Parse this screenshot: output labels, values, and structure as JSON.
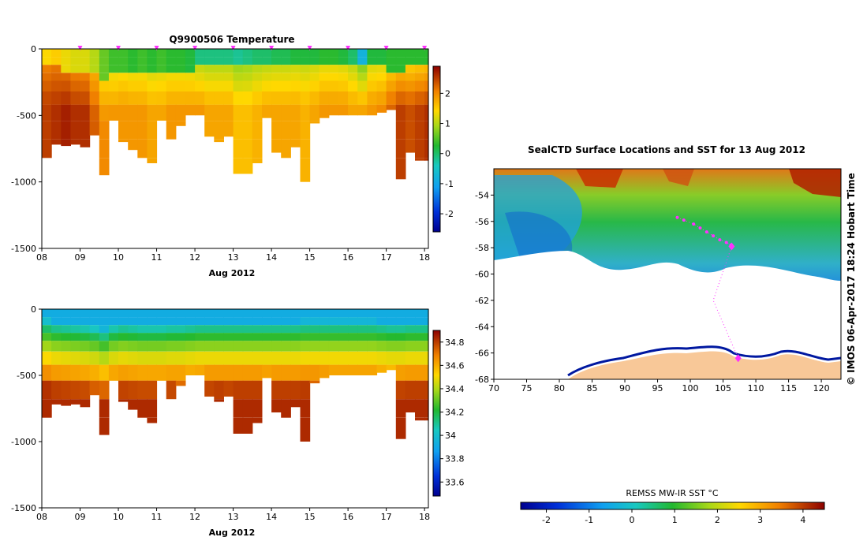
{
  "chart_data": [
    {
      "type": "heatmap",
      "title": "Q9900506  Temperature",
      "xlabel": "Aug 2012",
      "ylabel": "",
      "x_ticks": [
        "08",
        "09",
        "10",
        "11",
        "12",
        "13",
        "14",
        "15",
        "16",
        "17",
        "18"
      ],
      "x_range": [
        8,
        18.1
      ],
      "y_ticks": [
        "0",
        "-500",
        "-1000",
        "-1500"
      ],
      "y_range": [
        -1500,
        0
      ],
      "colorbar": {
        "ticks": [
          "2",
          "1",
          "0",
          "-1",
          "-2"
        ],
        "range": [
          -2.6,
          2.9
        ]
      },
      "profile_markers_day": [
        9,
        10,
        11,
        12,
        13,
        14,
        15,
        16,
        17,
        18
      ],
      "profiles": [
        {
          "t": 8.0,
          "mixed_depth": 120,
          "max_depth": 820,
          "surface_value": 1.4,
          "deep_value": 2.5
        },
        {
          "t": 8.25,
          "mixed_depth": 150,
          "max_depth": 720,
          "surface_value": 1.5,
          "deep_value": 2.6
        },
        {
          "t": 8.5,
          "mixed_depth": 160,
          "max_depth": 730,
          "surface_value": 1.3,
          "deep_value": 2.7
        },
        {
          "t": 8.75,
          "mixed_depth": 170,
          "max_depth": 720,
          "surface_value": 1.2,
          "deep_value": 2.6
        },
        {
          "t": 9.0,
          "mixed_depth": 180,
          "max_depth": 740,
          "surface_value": 1.2,
          "deep_value": 2.6
        },
        {
          "t": 9.25,
          "mixed_depth": 200,
          "max_depth": 650,
          "surface_value": 1.0,
          "deep_value": 2.3
        },
        {
          "t": 9.5,
          "mixed_depth": 240,
          "max_depth": 950,
          "surface_value": 0.6,
          "deep_value": 2.0
        },
        {
          "t": 9.75,
          "mixed_depth": 180,
          "max_depth": 540,
          "surface_value": 0.4,
          "deep_value": 1.9
        },
        {
          "t": 10.0,
          "mixed_depth": 160,
          "max_depth": 700,
          "surface_value": 0.4,
          "deep_value": 1.9
        },
        {
          "t": 10.25,
          "mixed_depth": 170,
          "max_depth": 760,
          "surface_value": 0.3,
          "deep_value": 1.9
        },
        {
          "t": 10.5,
          "mixed_depth": 180,
          "max_depth": 820,
          "surface_value": 0.4,
          "deep_value": 1.9
        },
        {
          "t": 10.75,
          "mixed_depth": 180,
          "max_depth": 860,
          "surface_value": 0.3,
          "deep_value": 1.8
        },
        {
          "t": 11.0,
          "mixed_depth": 180,
          "max_depth": 540,
          "surface_value": 0.4,
          "deep_value": 1.8
        },
        {
          "t": 11.25,
          "mixed_depth": 170,
          "max_depth": 680,
          "surface_value": 0.3,
          "deep_value": 1.9
        },
        {
          "t": 11.5,
          "mixed_depth": 170,
          "max_depth": 580,
          "surface_value": 0.3,
          "deep_value": 1.9
        },
        {
          "t": 11.75,
          "mixed_depth": 160,
          "max_depth": 500,
          "surface_value": 0.2,
          "deep_value": 1.9
        },
        {
          "t": 12.0,
          "mixed_depth": 150,
          "max_depth": 500,
          "surface_value": -0.1,
          "deep_value": 1.9
        },
        {
          "t": 12.25,
          "mixed_depth": 150,
          "max_depth": 660,
          "surface_value": -0.1,
          "deep_value": 1.8
        },
        {
          "t": 12.5,
          "mixed_depth": 150,
          "max_depth": 700,
          "surface_value": -0.1,
          "deep_value": 1.8
        },
        {
          "t": 12.75,
          "mixed_depth": 150,
          "max_depth": 660,
          "surface_value": -0.1,
          "deep_value": 1.8
        },
        {
          "t": 13.0,
          "mixed_depth": 150,
          "max_depth": 940,
          "surface_value": -0.2,
          "deep_value": 1.6
        },
        {
          "t": 13.25,
          "mixed_depth": 150,
          "max_depth": 940,
          "surface_value": -0.1,
          "deep_value": 1.6
        },
        {
          "t": 13.5,
          "mixed_depth": 150,
          "max_depth": 860,
          "surface_value": 0.0,
          "deep_value": 1.7
        },
        {
          "t": 13.75,
          "mixed_depth": 150,
          "max_depth": 520,
          "surface_value": 0.0,
          "deep_value": 1.8
        },
        {
          "t": 14.0,
          "mixed_depth": 150,
          "max_depth": 780,
          "surface_value": 0.1,
          "deep_value": 1.8
        },
        {
          "t": 14.25,
          "mixed_depth": 150,
          "max_depth": 820,
          "surface_value": 0.1,
          "deep_value": 1.8
        },
        {
          "t": 14.5,
          "mixed_depth": 150,
          "max_depth": 740,
          "surface_value": 0.2,
          "deep_value": 1.8
        },
        {
          "t": 14.75,
          "mixed_depth": 140,
          "max_depth": 1000,
          "surface_value": 0.2,
          "deep_value": 1.7
        },
        {
          "t": 15.0,
          "mixed_depth": 140,
          "max_depth": 560,
          "surface_value": 0.2,
          "deep_value": 1.8
        },
        {
          "t": 15.25,
          "mixed_depth": 140,
          "max_depth": 520,
          "surface_value": 0.3,
          "deep_value": 1.9
        },
        {
          "t": 15.5,
          "mixed_depth": 140,
          "max_depth": 500,
          "surface_value": 0.3,
          "deep_value": 1.9
        },
        {
          "t": 15.75,
          "mixed_depth": 140,
          "max_depth": 500,
          "surface_value": 0.2,
          "deep_value": 1.9
        },
        {
          "t": 16.0,
          "mixed_depth": 140,
          "max_depth": 500,
          "surface_value": 0.0,
          "deep_value": 1.8
        },
        {
          "t": 16.25,
          "mixed_depth": 140,
          "max_depth": 500,
          "surface_value": -0.8,
          "deep_value": 1.8
        },
        {
          "t": 16.5,
          "mixed_depth": 140,
          "max_depth": 500,
          "surface_value": 0.2,
          "deep_value": 1.9
        },
        {
          "t": 16.75,
          "mixed_depth": 150,
          "max_depth": 480,
          "surface_value": 0.2,
          "deep_value": 2.0
        },
        {
          "t": 17.0,
          "mixed_depth": 160,
          "max_depth": 460,
          "surface_value": 0.3,
          "deep_value": 2.3
        },
        {
          "t": 17.25,
          "mixed_depth": 160,
          "max_depth": 980,
          "surface_value": 0.3,
          "deep_value": 2.5
        },
        {
          "t": 17.5,
          "mixed_depth": 150,
          "max_depth": 780,
          "surface_value": 0.3,
          "deep_value": 2.4
        },
        {
          "t": 17.75,
          "mixed_depth": 150,
          "max_depth": 840,
          "surface_value": 0.3,
          "deep_value": 2.5
        },
        {
          "t": 18.0,
          "mixed_depth": 150,
          "max_depth": 840,
          "surface_value": 0.3,
          "deep_value": 2.6
        }
      ]
    },
    {
      "type": "heatmap",
      "title": "",
      "xlabel": "Aug 2012",
      "ylabel": "",
      "x_ticks": [
        "08",
        "09",
        "10",
        "11",
        "12",
        "13",
        "14",
        "15",
        "16",
        "17",
        "18"
      ],
      "x_range": [
        8,
        18.1
      ],
      "y_ticks": [
        "0",
        "-500",
        "-1000",
        "-1500"
      ],
      "y_range": [
        -1500,
        0
      ],
      "colorbar": {
        "ticks": [
          "34.8",
          "34.6",
          "34.4",
          "34.2",
          "34",
          "33.8",
          "33.6"
        ],
        "range": [
          33.48,
          34.9
        ]
      },
      "surface_value": 33.92,
      "deep_value": 34.83
    },
    {
      "type": "heatmap",
      "title": "SealCTD Surface Locations and SST for 13 Aug 2012",
      "xlabel": "",
      "ylabel": "",
      "x_ticks": [
        "70",
        "75",
        "80",
        "85",
        "90",
        "95",
        "100",
        "105",
        "110",
        "115",
        "120"
      ],
      "x_range": [
        70,
        123
      ],
      "y_ticks": [
        "-54",
        "-56",
        "-58",
        "-60",
        "-62",
        "-64",
        "-66",
        "-68"
      ],
      "y_range": [
        -68,
        -52
      ],
      "colorbar": {
        "label": "REMSS MW-IR SST °C",
        "ticks": [
          "-2",
          "-1",
          "0",
          "1",
          "2",
          "3",
          "4"
        ],
        "range": [
          -2.6,
          4.5
        ]
      },
      "track_lon": [
        98,
        99,
        100.5,
        101.5,
        102.5,
        103.5,
        104.5,
        105.5,
        106.2
      ],
      "track_lat": [
        -55.7,
        -55.9,
        -56.2,
        -56.5,
        -56.8,
        -57.1,
        -57.4,
        -57.6,
        -57.8
      ],
      "recent_lon": 106.3,
      "recent_lat": -57.9,
      "coast_end_lon": 107.3,
      "coast_end_lat": -66.4,
      "side_caption": "©  IMOS 06-Apr-2017 18:24 Hobart Time"
    }
  ]
}
